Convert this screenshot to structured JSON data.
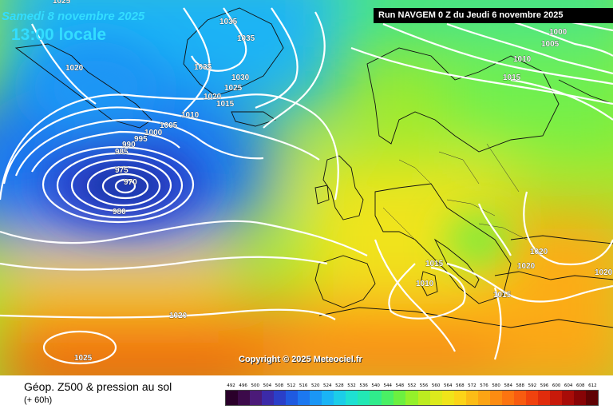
{
  "header": {
    "date": "Samedi 8 novembre 2025",
    "time": "13:00 locale",
    "run": "Run NAVGEM 0 Z du Jeudi 6 novembre 2025"
  },
  "copyright": "Copyright © 2025 Meteociel.fr",
  "legend": {
    "title": "Géop. Z500 & pression au sol",
    "subtitle": "(+ 60h)",
    "scale_values": [
      "492",
      "496",
      "500",
      "504",
      "508",
      "512",
      "516",
      "520",
      "524",
      "528",
      "532",
      "536",
      "540",
      "544",
      "548",
      "552",
      "556",
      "560",
      "564",
      "568",
      "572",
      "576",
      "580",
      "584",
      "588",
      "592",
      "596",
      "600",
      "604",
      "608",
      "612"
    ],
    "scale_colors": [
      "#2a002a",
      "#3c0a4a",
      "#4b1a78",
      "#3b2aa8",
      "#2a3fc8",
      "#1f5ae0",
      "#1c78f0",
      "#1a96f5",
      "#1ab4f5",
      "#1ccde8",
      "#1ee0d2",
      "#22e8b4",
      "#30ec8c",
      "#4af064",
      "#6cf040",
      "#94f02a",
      "#bcec20",
      "#dcea1c",
      "#f0e41a",
      "#fcd418",
      "#fcbc16",
      "#fca414",
      "#fc8c12",
      "#fc7410",
      "#f85c10",
      "#f0420e",
      "#e02c0c",
      "#c81a0a",
      "#a80c08",
      "#880406",
      "#600204"
    ]
  },
  "isobars": [
    "1025",
    "1035",
    "1035",
    "1020",
    "1035",
    "1030",
    "1025",
    "1020",
    "1015",
    "1010",
    "1005",
    "1000",
    "995",
    "990",
    "985",
    "975",
    "970",
    "980",
    "1020",
    "1025",
    "1000",
    "1005",
    "1010",
    "1015",
    "1015",
    "1010",
    "1020",
    "1020",
    "1015",
    "1020"
  ]
}
